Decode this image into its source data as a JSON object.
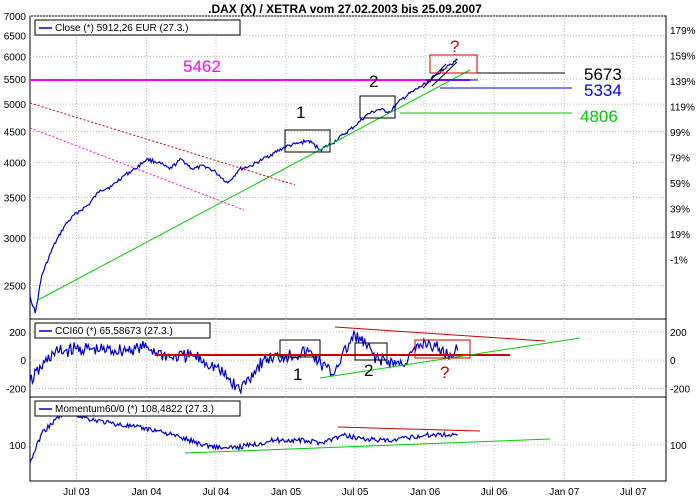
{
  "title": ".DAX (X) / XETRA vom 27.02.2003 bis 25.09.2007",
  "colors": {
    "price": "#0000cc",
    "frame": "#000000",
    "grid": "#b8b8b8",
    "magenta": "#ff00ff",
    "green": "#00cc00",
    "red": "#cc0000",
    "blue": "#0000ff",
    "black": "#000000"
  },
  "chart_data": [
    {
      "type": "line",
      "panel": "price",
      "legend": "Close (*) 5912,26 EUR (27.3.)",
      "y_scale": "log",
      "ylim": [
        2200,
        7000
      ],
      "y_ticks": [
        2500,
        3000,
        3500,
        4000,
        4500,
        5000,
        5500,
        6000,
        6500,
        7000
      ],
      "y_ticks_right": [
        "179%",
        "159%",
        "139%",
        "119%",
        "99%",
        "79%",
        "59%",
        "39%",
        "19%",
        "-1%"
      ],
      "x_tick_labels": [
        "Jul 03",
        "Jan 04",
        "Jul 04",
        "Jan 05",
        "Jul 05",
        "Jan 06",
        "Jul 06",
        "Jan 07",
        "Jul 07"
      ],
      "x_tick_dates": [
        "2003-07-01",
        "2004-01-01",
        "2004-07-01",
        "2005-01-01",
        "2005-07-01",
        "2006-01-01",
        "2006-07-01",
        "2007-01-01",
        "2007-07-01"
      ],
      "x_range": [
        "2003-03-01",
        "2007-09-25"
      ],
      "grid": true,
      "series": [
        {
          "x": [
            "2003-03-01",
            "2003-03-15",
            "2003-04-01",
            "2003-05-01",
            "2003-06-01",
            "2003-07-01",
            "2003-08-01",
            "2003-09-01",
            "2003-10-01",
            "2003-11-01",
            "2003-12-01",
            "2004-01-01",
            "2004-02-01",
            "2004-03-01",
            "2004-04-01",
            "2004-05-01",
            "2004-06-01",
            "2004-07-01",
            "2004-08-01",
            "2004-09-01",
            "2004-10-01",
            "2004-11-01",
            "2004-12-01",
            "2005-01-01",
            "2005-02-01",
            "2005-03-01",
            "2005-04-01",
            "2005-05-01",
            "2005-06-01",
            "2005-07-01",
            "2005-08-01",
            "2005-09-01",
            "2005-10-01",
            "2005-11-01",
            "2005-12-01",
            "2006-01-01",
            "2006-02-01",
            "2006-03-01",
            "2006-03-27"
          ],
          "values": [
            2400,
            2250,
            2600,
            2900,
            3150,
            3300,
            3400,
            3600,
            3650,
            3800,
            3900,
            4050,
            4000,
            3900,
            4050,
            3900,
            3950,
            3850,
            3700,
            3900,
            3950,
            4050,
            4150,
            4250,
            4300,
            4350,
            4200,
            4300,
            4450,
            4600,
            4800,
            4900,
            4850,
            5100,
            5250,
            5400,
            5600,
            5800,
            5912
          ]
        }
      ],
      "annotations": [
        {
          "text": "5462",
          "value": 5462,
          "color": "magenta"
        },
        {
          "text": "5673",
          "value": 5673,
          "color": "black"
        },
        {
          "text": "5334",
          "value": 5334,
          "color": "blue"
        },
        {
          "text": "4806",
          "value": 4806,
          "color": "green"
        },
        {
          "text": "1"
        },
        {
          "text": "2"
        },
        {
          "text": "?",
          "color": "red"
        }
      ]
    },
    {
      "type": "line",
      "panel": "cci",
      "legend": "CCI60 (*) 65,58673 (27.3.)",
      "ylim": [
        -260,
        290
      ],
      "y_ticks": [
        -200,
        0,
        200
      ],
      "grid": true,
      "series": [
        {
          "x": [
            "2003-03-01",
            "2003-05-01",
            "2003-07-01",
            "2003-09-01",
            "2003-11-01",
            "2004-01-01",
            "2004-03-01",
            "2004-05-01",
            "2004-07-01",
            "2004-09-01",
            "2004-11-01",
            "2005-01-01",
            "2005-03-01",
            "2005-05-01",
            "2005-07-01",
            "2005-09-01",
            "2005-11-01",
            "2006-01-01",
            "2006-03-01",
            "2006-03-27"
          ],
          "values": [
            -150,
            50,
            80,
            70,
            70,
            90,
            20,
            30,
            -50,
            -210,
            0,
            30,
            60,
            -100,
            180,
            0,
            -30,
            130,
            40,
            66
          ]
        }
      ],
      "annotations": [
        {
          "text": "1"
        },
        {
          "text": "2"
        },
        {
          "text": "?",
          "color": "red"
        }
      ]
    },
    {
      "type": "line",
      "panel": "momentum",
      "legend": "Momentum60/0 (*) 108,4822 (27.3.)",
      "ylim": [
        70,
        140
      ],
      "y_ticks": [
        100
      ],
      "grid": true,
      "series": [
        {
          "x": [
            "2003-03-01",
            "2003-04-01",
            "2003-06-01",
            "2003-08-01",
            "2003-10-01",
            "2003-12-01",
            "2004-02-01",
            "2004-04-01",
            "2004-06-01",
            "2004-08-01",
            "2004-10-01",
            "2004-12-01",
            "2005-02-01",
            "2005-04-01",
            "2005-06-01",
            "2005-08-01",
            "2005-10-01",
            "2005-12-01",
            "2006-02-01",
            "2006-03-27"
          ],
          "values": [
            85,
            110,
            128,
            122,
            118,
            115,
            112,
            106,
            100,
            97,
            100,
            104,
            104,
            102,
            108,
            105,
            103,
            107,
            109,
            108
          ]
        }
      ]
    }
  ]
}
